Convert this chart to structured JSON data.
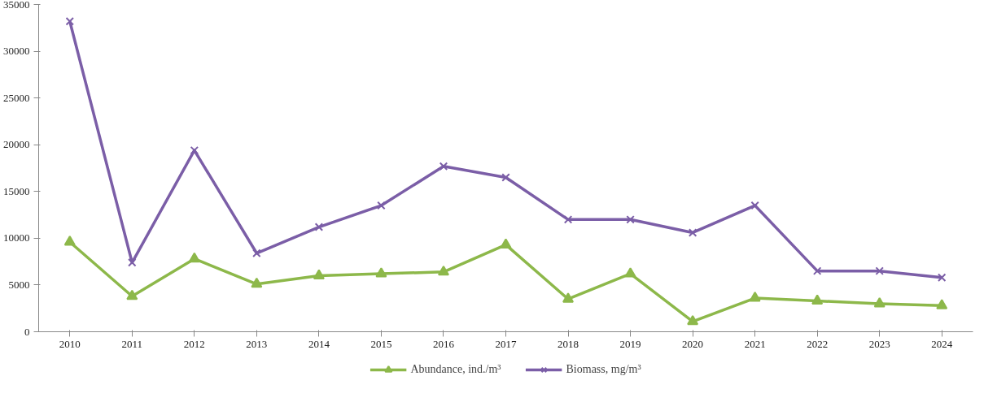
{
  "chart_data": {
    "type": "line",
    "categories": [
      "2010",
      "2011",
      "2012",
      "2013",
      "2014",
      "2015",
      "2016",
      "2017",
      "2018",
      "2019",
      "2020",
      "2021",
      "2022",
      "2023",
      "2024"
    ],
    "series": [
      {
        "name": "Abundance, ind./m³",
        "color": "#8db84a",
        "marker": "triangle",
        "values": [
          9600,
          3800,
          7800,
          5100,
          6000,
          6200,
          6400,
          9300,
          3500,
          6200,
          1100,
          3600,
          3300,
          3000,
          2800
        ]
      },
      {
        "name": "Biomass, mg/m³",
        "color": "#7b5ea7",
        "marker": "cross",
        "values": [
          33200,
          7400,
          19400,
          8400,
          11200,
          13500,
          17700,
          16500,
          12000,
          12000,
          10600,
          13500,
          6500,
          6500,
          5800
        ]
      }
    ],
    "ylim": [
      0,
      35000
    ],
    "yticks": [
      0,
      5000,
      10000,
      15000,
      20000,
      25000,
      30000,
      35000
    ],
    "grid": false,
    "legend": "bottom",
    "line_style": "solid"
  }
}
